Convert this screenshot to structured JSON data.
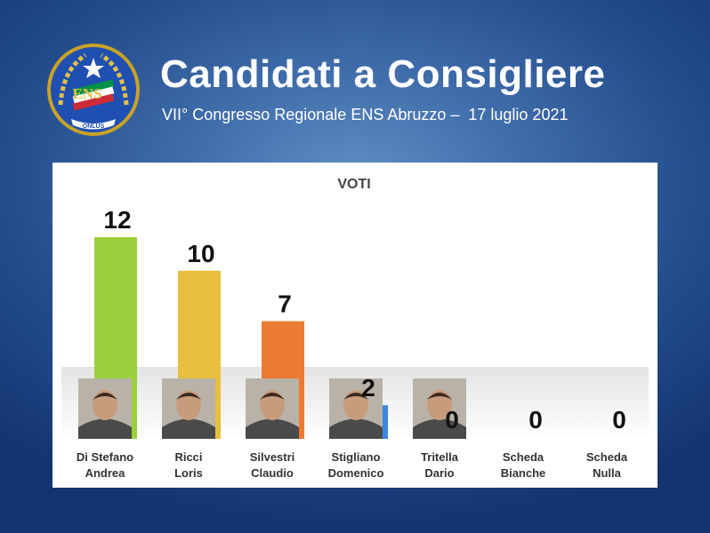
{
  "header": {
    "title": "Candidati a Consigliere",
    "subtitle": "VII° Congresso Regionale ENS Abruzzo –  17 luglio 2021"
  },
  "logo": {
    "emblem_text": "ENS",
    "ribbon_text": "ONLUS",
    "icon": "ens-emblem-icon"
  },
  "colors": {
    "background": "#2a5799",
    "panel": "#ffffff",
    "bar_green": "#9ccf3c",
    "bar_yellow": "#e8bf3e",
    "bar_orange": "#eb7a33",
    "bar_blue": "#3d86de"
  },
  "chart_data": {
    "type": "bar",
    "title": "VOTI",
    "categories": [
      [
        "Di Stefano",
        "Andrea"
      ],
      [
        "Ricci",
        "Loris"
      ],
      [
        "Silvestri",
        "Claudio"
      ],
      [
        "Stigliano",
        "Domenico"
      ],
      [
        "Tritella",
        "Dario"
      ],
      [
        "Scheda",
        "Bianche"
      ],
      [
        "Scheda",
        "Nulla"
      ]
    ],
    "values": [
      12,
      10,
      7,
      2,
      0,
      0,
      0
    ],
    "value_labels": [
      "12",
      "10",
      "7",
      "2",
      "0",
      "0",
      "0"
    ],
    "bar_colors": [
      "#9ccf3c",
      "#e8bf3e",
      "#eb7a33",
      "#3d86de",
      "#3d86de",
      "#3d86de",
      "#3d86de"
    ],
    "photos": [
      "candidate-photo",
      "candidate-photo",
      "candidate-photo",
      "candidate-photo",
      "candidate-photo",
      "",
      ""
    ],
    "ylim": [
      0,
      12
    ],
    "grid": false,
    "legend": "none"
  }
}
